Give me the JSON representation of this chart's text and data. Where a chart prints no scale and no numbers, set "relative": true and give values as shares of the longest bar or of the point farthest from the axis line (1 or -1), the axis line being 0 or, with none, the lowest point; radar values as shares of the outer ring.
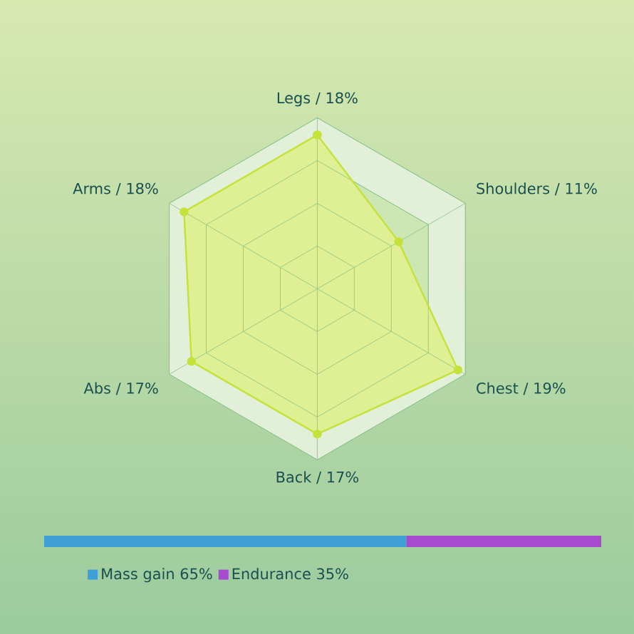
{
  "chart_data": [
    {
      "type": "radar",
      "categories": [
        "Legs / 18%",
        "Shoulders / 11%",
        "Chest / 19%",
        "Back / 17%",
        "Abs / 17%",
        "Arms / 18%"
      ],
      "relative": true,
      "marker": "circle",
      "series": [
        {
          "color": "#c4e23a",
          "values": [
            0.9,
            0.55,
            0.95,
            0.85,
            0.85,
            0.9
          ]
        }
      ]
    },
    {
      "type": "bar",
      "orientation": "horizontal",
      "stacked": true,
      "categories": [
        null
      ],
      "relative": true,
      "legend": "bottom",
      "series": [
        {
          "name": "Mass gain 65%",
          "color": "#3f9fd6",
          "values": [
            0.65
          ]
        },
        {
          "name": "Endurance 35%",
          "color": "#a84ad0",
          "values": [
            0.35
          ]
        }
      ]
    }
  ]
}
